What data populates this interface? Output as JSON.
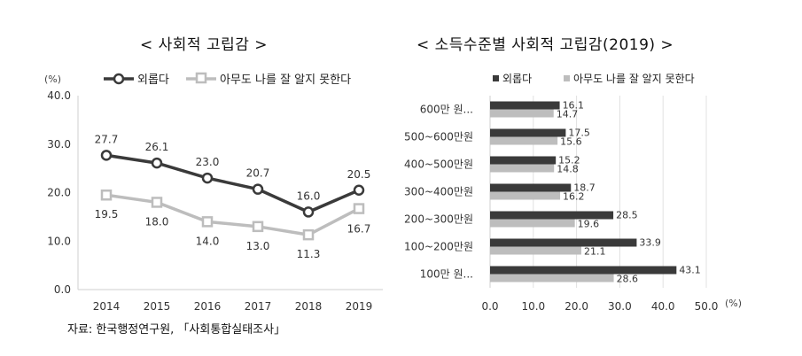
{
  "titles": {
    "left": "< 사회적 고립감 >",
    "right": "< 소득수준별 사회적 고립감(2019) >"
  },
  "source": "자료: 한국행정연구원, 「사회통합실태조사」",
  "colors": {
    "dark": "#3a3a3a",
    "light": "#bdbdbd",
    "axis": "#cfcfcf"
  },
  "chart_data": [
    {
      "type": "line",
      "title": "< 사회적 고립감 >",
      "unit_label": "(%)",
      "x": [
        "2014",
        "2015",
        "2016",
        "2017",
        "2018",
        "2019"
      ],
      "series": [
        {
          "name": "외롭다",
          "values": [
            27.7,
            26.1,
            23.0,
            20.7,
            16.0,
            20.5
          ]
        },
        {
          "name": "아무도 나를 잘 알지 못한다",
          "values": [
            19.5,
            18.0,
            14.0,
            13.0,
            11.3,
            16.7
          ]
        }
      ],
      "ylim": [
        0,
        40
      ],
      "yticks": [
        "0.0",
        "10.0",
        "20.0",
        "30.0",
        "40.0"
      ],
      "grid": false,
      "legend": "top"
    },
    {
      "type": "bar",
      "orientation": "horizontal",
      "title": "< 소득수준별 사회적 고립감(2019) >",
      "unit_label": "(%)",
      "categories": [
        "600만 원...",
        "500~600만원",
        "400~500만원",
        "300~400만원",
        "200~300만원",
        "100~200만원",
        "100만 원..."
      ],
      "series": [
        {
          "name": "외롭다",
          "values": [
            16.1,
            17.5,
            15.2,
            18.7,
            28.5,
            33.9,
            43.1
          ]
        },
        {
          "name": "아무도 나를 잘 알지 못한다",
          "values": [
            14.7,
            15.6,
            14.8,
            16.2,
            19.6,
            21.1,
            28.6
          ]
        }
      ],
      "xlim": [
        0,
        50
      ],
      "xticks": [
        "0.0",
        "10.0",
        "20.0",
        "30.0",
        "40.0",
        "50.0"
      ],
      "grid": true,
      "legend": "top"
    }
  ]
}
